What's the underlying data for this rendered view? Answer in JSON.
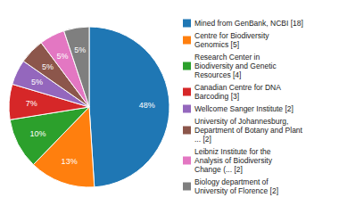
{
  "chart_data": {
    "type": "pie",
    "categories": [
      "Mined from GenBank, NCBI [18]",
      "Centre for Biodiversity\nGenomics [5]",
      "Research Center in\nBiodiversity and Genetic\nResources [4]",
      "Canadian Centre for DNA\nBarcoding [3]",
      "Wellcome Sanger Institute [2]",
      "University of Johannesburg,\nDepartment of Botany and Plant\n... [2]",
      "Leibniz Institute for the\nAnalysis of Biodiversity\nChange (... [2]",
      "Biology department of\nUniversity of Florence [2]"
    ],
    "values": [
      48,
      13,
      10,
      7,
      5,
      5,
      5,
      5
    ],
    "value_labels": [
      "48%",
      "13%",
      "10%",
      "7%",
      "5%",
      "5%",
      "5%",
      "5%"
    ],
    "data_labels": true,
    "legend": "right"
  }
}
